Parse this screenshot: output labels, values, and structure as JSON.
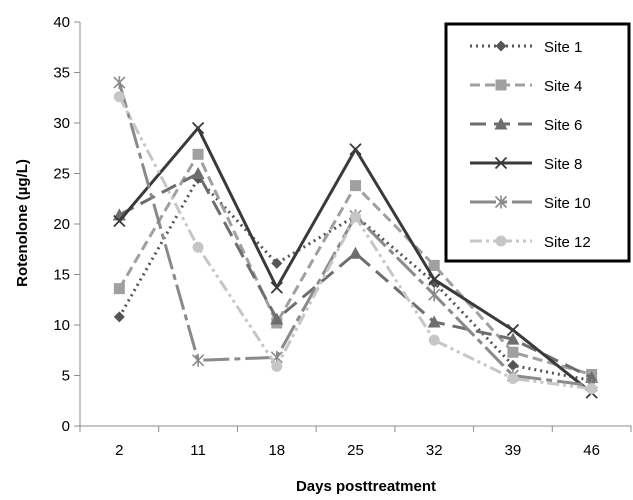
{
  "chart_data": {
    "type": "line",
    "title": "",
    "xlabel": "Days posttreatment",
    "ylabel": "Rotenolone (µg/L)",
    "categories": [
      "2",
      "11",
      "18",
      "25",
      "32",
      "39",
      "46"
    ],
    "ylim": [
      0,
      40
    ],
    "yticks": [
      0,
      5,
      10,
      15,
      20,
      25,
      30,
      35,
      40
    ],
    "grid": false,
    "legend_position": "top-right",
    "series": [
      {
        "name": "Site 1",
        "values": [
          10.8,
          24.5,
          16.1,
          20.8,
          14.2,
          6.0,
          4.5
        ],
        "color": "#555555",
        "marker": "diamond",
        "dash": "2,4"
      },
      {
        "name": "Site 4",
        "values": [
          13.6,
          26.9,
          10.2,
          23.8,
          15.9,
          7.3,
          5.1
        ],
        "color": "#a0a0a0",
        "marker": "square",
        "dash": "10,5"
      },
      {
        "name": "Site 6",
        "values": [
          20.9,
          25.0,
          10.6,
          17.1,
          10.3,
          8.6,
          4.8
        ],
        "color": "#6e6e6e",
        "marker": "triangle",
        "dash": "16,8"
      },
      {
        "name": "Site 8",
        "values": [
          20.3,
          29.5,
          13.7,
          27.4,
          14.5,
          9.5,
          3.3
        ],
        "color": "#3a3a3a",
        "marker": "x",
        "dash": ""
      },
      {
        "name": "Site 10",
        "values": [
          34.0,
          6.5,
          6.8,
          20.8,
          13.0,
          5.0,
          4.0
        ],
        "color": "#8a8a8a",
        "marker": "star",
        "dash": "26,5,6,5"
      },
      {
        "name": "Site 12",
        "values": [
          32.6,
          17.7,
          5.9,
          20.7,
          8.5,
          4.7,
          3.7
        ],
        "color": "#c6c6c6",
        "marker": "circle",
        "dash": "12,4,3,4,3,4"
      }
    ]
  }
}
